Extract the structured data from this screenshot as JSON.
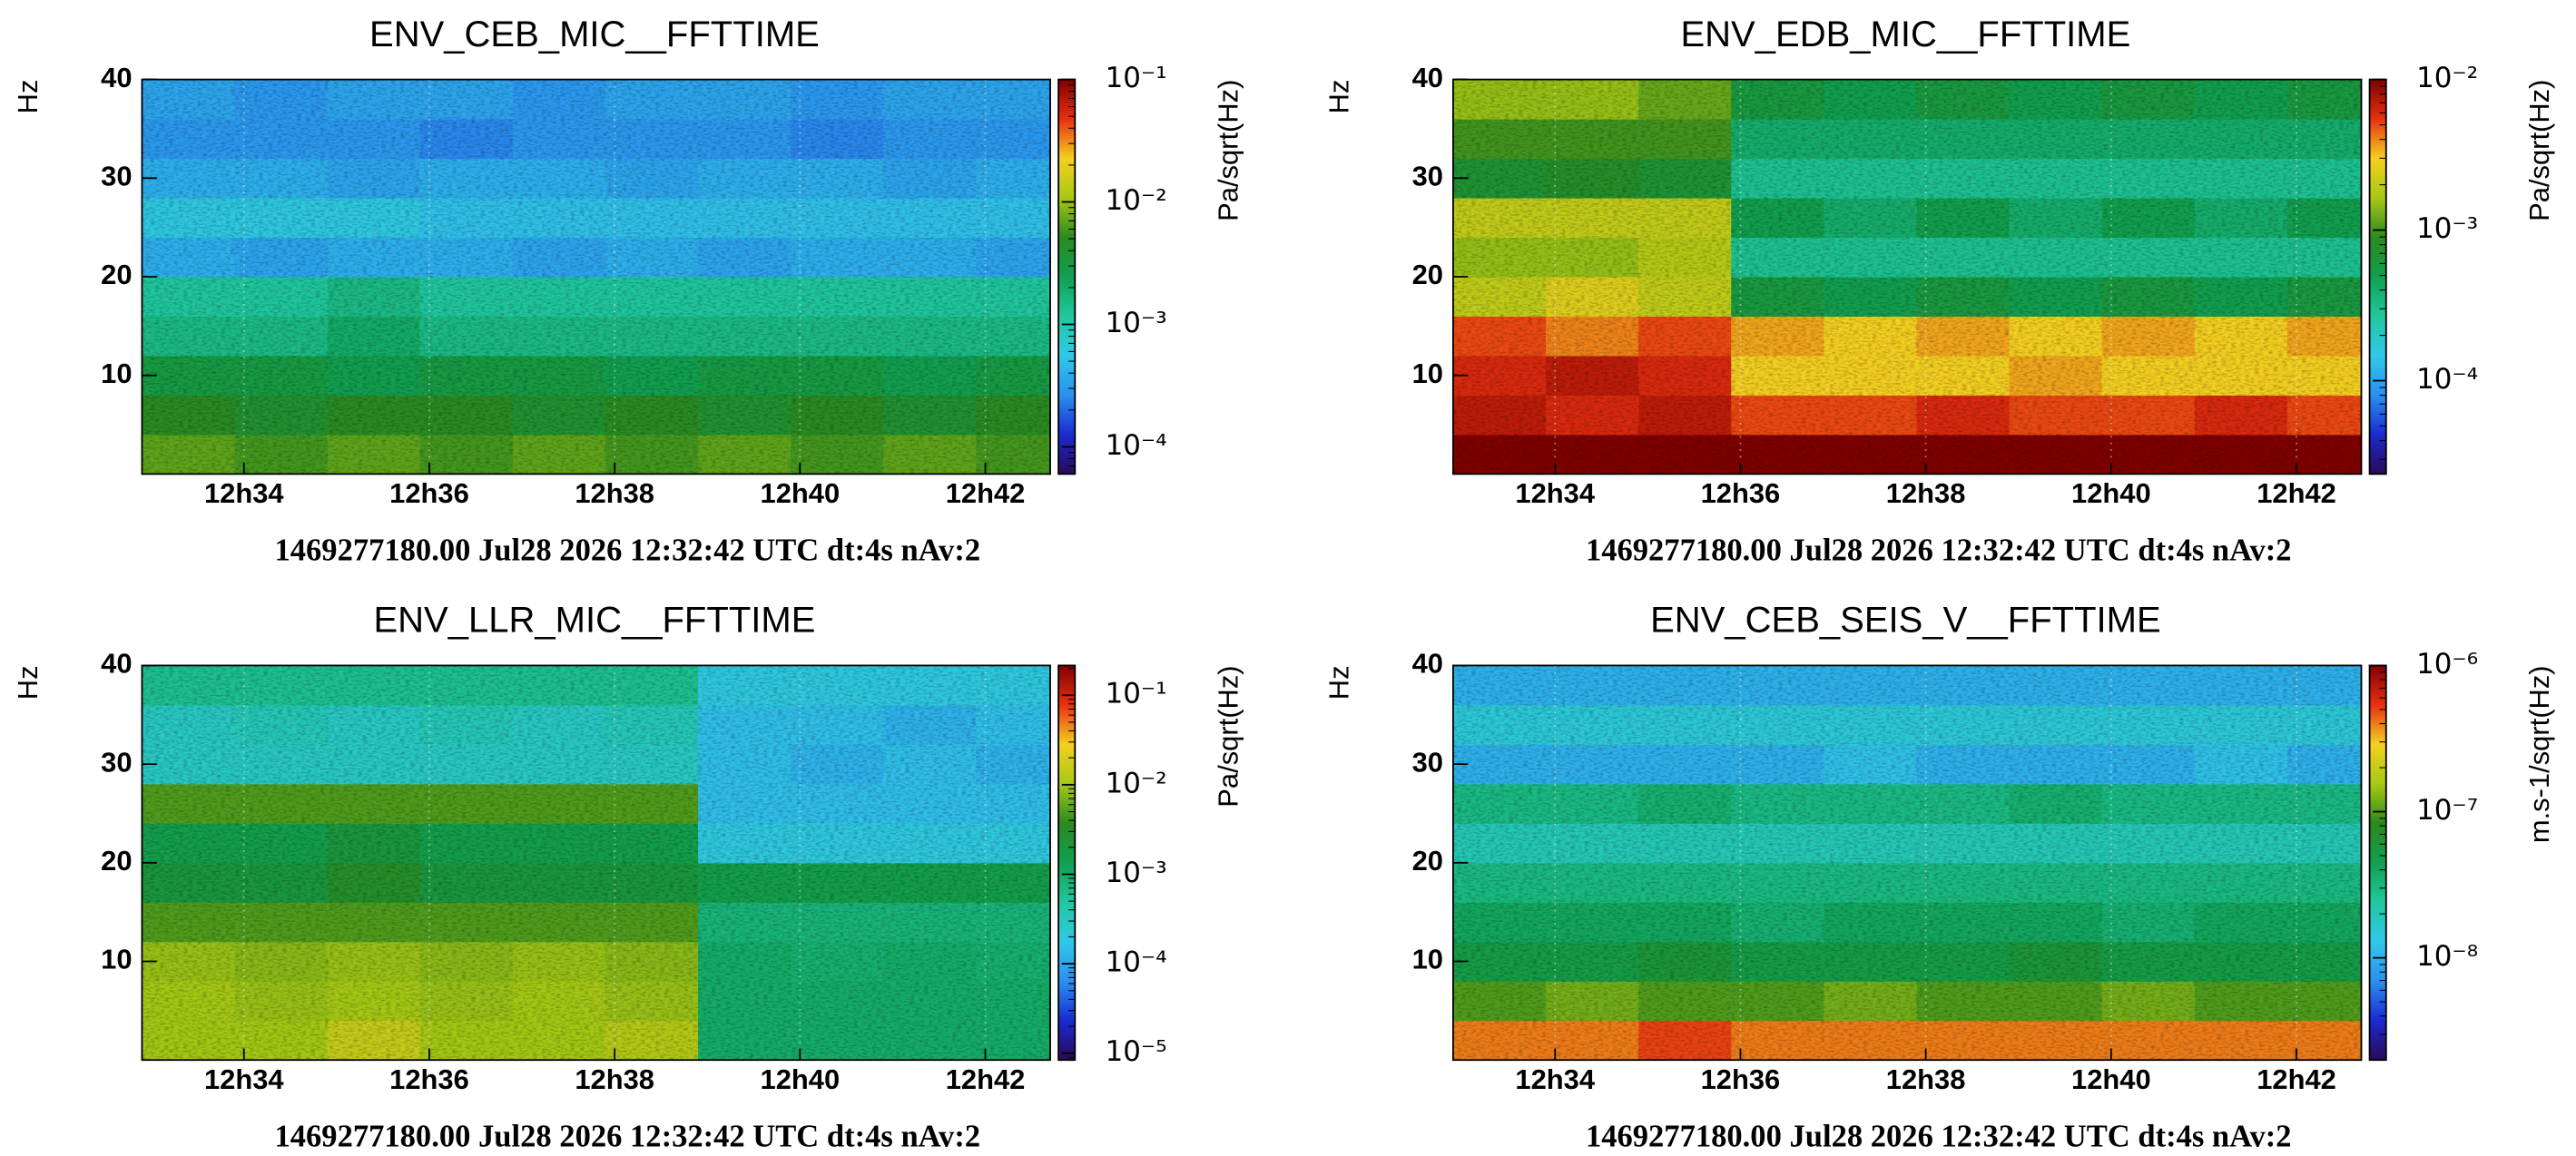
{
  "chart_data": [
    {
      "type": "heatmap",
      "title": "ENV_CEB_MIC__FFTTIME",
      "xlabel": "1469277180.00 Jul28 2026 12:32:42 UTC dt:4s nAv:2",
      "ylabel": "Hz",
      "zlabel": "Pa/sqrt(Hz)",
      "xlim": [
        32.9,
        42.7
      ],
      "ylim": [
        0,
        40
      ],
      "zlim": [
        6e-05,
        0.1
      ],
      "zscale": "log",
      "grid": true,
      "xticks": [
        {
          "value": 34,
          "label": "12h34"
        },
        {
          "value": 36,
          "label": "12h36"
        },
        {
          "value": 38,
          "label": "12h38"
        },
        {
          "value": 40,
          "label": "12h40"
        },
        {
          "value": 42,
          "label": "12h42"
        }
      ],
      "yticks": [
        10,
        20,
        30,
        40
      ],
      "zticks": [
        {
          "value": 0.1,
          "label": "10⁻¹"
        },
        {
          "value": 0.01,
          "label": "10⁻²"
        },
        {
          "value": 0.001,
          "label": "10⁻³"
        },
        {
          "value": 0.0001,
          "label": "10⁻⁴"
        }
      ],
      "colormap": [
        "#2a0a5a",
        "#1a2ad0",
        "#2a90f0",
        "#30c8e8",
        "#20c8a0",
        "#10a050",
        "#2a8a20",
        "#a8c814",
        "#f4d020",
        "#e83010",
        "#800000"
      ],
      "xbins": [
        32.9,
        33.9,
        34.9,
        35.9,
        36.9,
        37.9,
        38.9,
        39.9,
        40.9,
        41.9,
        42.7
      ],
      "ybins": [
        0,
        4,
        8,
        12,
        16,
        20,
        24,
        28,
        32,
        36,
        40
      ],
      "z": [
        [
          0.007,
          0.006,
          0.007,
          0.006,
          0.007,
          0.006,
          0.007,
          0.006,
          0.007,
          0.006
        ],
        [
          0.005,
          0.004,
          0.005,
          0.005,
          0.004,
          0.005,
          0.004,
          0.005,
          0.004,
          0.005
        ],
        [
          0.003,
          0.003,
          0.0025,
          0.003,
          0.003,
          0.0025,
          0.003,
          0.003,
          0.0025,
          0.003
        ],
        [
          0.0015,
          0.0015,
          0.002,
          0.0015,
          0.0015,
          0.0015,
          0.0015,
          0.0015,
          0.0015,
          0.0015
        ],
        [
          0.0012,
          0.0012,
          0.0015,
          0.0012,
          0.0012,
          0.0012,
          0.0012,
          0.0012,
          0.0012,
          0.0012
        ],
        [
          0.0004,
          0.00035,
          0.0004,
          0.0004,
          0.00035,
          0.0004,
          0.00035,
          0.0004,
          0.0004,
          0.00035
        ],
        [
          0.0006,
          0.0006,
          0.0006,
          0.0005,
          0.0005,
          0.0005,
          0.0005,
          0.0005,
          0.0005,
          0.0005
        ],
        [
          0.0004,
          0.0004,
          0.00035,
          0.0004,
          0.0004,
          0.00035,
          0.0004,
          0.0004,
          0.00035,
          0.0004
        ],
        [
          0.0003,
          0.0003,
          0.0003,
          0.00025,
          0.0003,
          0.0003,
          0.0003,
          0.00025,
          0.0003,
          0.0003
        ],
        [
          0.00035,
          0.0003,
          0.00035,
          0.00035,
          0.0003,
          0.00035,
          0.00035,
          0.0003,
          0.00035,
          0.00035
        ]
      ]
    },
    {
      "type": "heatmap",
      "title": "ENV_EDB_MIC__FFTTIME",
      "xlabel": "1469277180.00 Jul28 2026 12:32:42 UTC dt:4s nAv:2",
      "ylabel": "Hz",
      "zlabel": "Pa/sqrt(Hz)",
      "xlim": [
        32.9,
        42.7
      ],
      "ylim": [
        0,
        40
      ],
      "zlim": [
        2.4e-05,
        0.01
      ],
      "zscale": "log",
      "grid": true,
      "xticks": [
        {
          "value": 34,
          "label": "12h34"
        },
        {
          "value": 36,
          "label": "12h36"
        },
        {
          "value": 38,
          "label": "12h38"
        },
        {
          "value": 40,
          "label": "12h40"
        },
        {
          "value": 42,
          "label": "12h42"
        }
      ],
      "yticks": [
        10,
        20,
        30,
        40
      ],
      "zticks": [
        {
          "value": 0.01,
          "label": "10⁻²"
        },
        {
          "value": 0.001,
          "label": "10⁻³"
        },
        {
          "value": 0.0001,
          "label": "10⁻⁴"
        }
      ],
      "colormap": [
        "#2a0a5a",
        "#1a2ad0",
        "#2a90f0",
        "#30c8e8",
        "#20c8a0",
        "#10a050",
        "#2a8a20",
        "#a8c814",
        "#f4d020",
        "#e83010",
        "#800000"
      ],
      "xbins": [
        32.9,
        33.9,
        34.9,
        35.9,
        36.9,
        37.9,
        38.9,
        39.9,
        40.9,
        41.9,
        42.7
      ],
      "ybins": [
        0,
        4,
        8,
        12,
        16,
        20,
        24,
        28,
        32,
        36,
        40
      ],
      "z": [
        [
          0.01,
          0.01,
          0.01,
          0.01,
          0.01,
          0.01,
          0.01,
          0.01,
          0.01,
          0.01
        ],
        [
          0.007,
          0.006,
          0.007,
          0.005,
          0.005,
          0.006,
          0.005,
          0.005,
          0.006,
          0.005
        ],
        [
          0.006,
          0.007,
          0.006,
          0.003,
          0.003,
          0.003,
          0.0035,
          0.003,
          0.003,
          0.003
        ],
        [
          0.005,
          0.004,
          0.005,
          0.0035,
          0.003,
          0.0035,
          0.003,
          0.0035,
          0.003,
          0.0035
        ],
        [
          0.002,
          0.0025,
          0.002,
          0.0006,
          0.0005,
          0.0006,
          0.0005,
          0.0006,
          0.0005,
          0.0006
        ],
        [
          0.0015,
          0.0015,
          0.0018,
          0.0003,
          0.0003,
          0.0003,
          0.0003,
          0.0003,
          0.0003,
          0.0003
        ],
        [
          0.002,
          0.002,
          0.002,
          0.0005,
          0.0004,
          0.0005,
          0.0004,
          0.0005,
          0.0004,
          0.0005
        ],
        [
          0.0007,
          0.0008,
          0.0007,
          0.0003,
          0.0003,
          0.0003,
          0.0003,
          0.0003,
          0.0003,
          0.0003
        ],
        [
          0.001,
          0.001,
          0.001,
          0.0004,
          0.0004,
          0.0004,
          0.0004,
          0.0004,
          0.0004,
          0.0004
        ],
        [
          0.0015,
          0.0015,
          0.0012,
          0.0006,
          0.0005,
          0.0006,
          0.0005,
          0.0006,
          0.0005,
          0.0006
        ]
      ]
    },
    {
      "type": "heatmap",
      "title": "ENV_LLR_MIC__FFTTIME",
      "xlabel": "1469277180.00 Jul28 2026 12:32:42 UTC dt:4s nAv:2",
      "ylabel": "Hz",
      "zlabel": "Pa/sqrt(Hz)",
      "xlim": [
        32.9,
        42.7
      ],
      "ylim": [
        0,
        40
      ],
      "zlim": [
        8.4e-06,
        0.215
      ],
      "zscale": "log",
      "grid": true,
      "xticks": [
        {
          "value": 34,
          "label": "12h34"
        },
        {
          "value": 36,
          "label": "12h36"
        },
        {
          "value": 38,
          "label": "12h38"
        },
        {
          "value": 40,
          "label": "12h40"
        },
        {
          "value": 42,
          "label": "12h42"
        }
      ],
      "yticks": [
        10,
        20,
        30,
        40
      ],
      "zticks": [
        {
          "value": 0.1,
          "label": "10⁻¹"
        },
        {
          "value": 0.01,
          "label": "10⁻²"
        },
        {
          "value": 0.001,
          "label": "10⁻³"
        },
        {
          "value": 0.0001,
          "label": "10⁻⁴"
        },
        {
          "value": 1e-05,
          "label": "10⁻⁵"
        }
      ],
      "colormap": [
        "#2a0a5a",
        "#1a2ad0",
        "#2a90f0",
        "#30c8e8",
        "#20c8a0",
        "#10a050",
        "#2a8a20",
        "#a8c814",
        "#f4d020",
        "#e83010",
        "#800000"
      ],
      "xbins": [
        32.9,
        33.9,
        34.9,
        35.9,
        36.9,
        37.9,
        38.9,
        39.9,
        40.9,
        41.9,
        42.7
      ],
      "ybins": [
        0,
        4,
        8,
        12,
        16,
        20,
        24,
        28,
        32,
        36,
        40
      ],
      "z": [
        [
          0.01,
          0.01,
          0.015,
          0.01,
          0.01,
          0.012,
          0.001,
          0.001,
          0.001,
          0.001
        ],
        [
          0.01,
          0.009,
          0.01,
          0.009,
          0.01,
          0.009,
          0.001,
          0.001,
          0.001,
          0.001
        ],
        [
          0.009,
          0.008,
          0.009,
          0.008,
          0.009,
          0.008,
          0.001,
          0.0009,
          0.001,
          0.0009
        ],
        [
          0.005,
          0.005,
          0.005,
          0.005,
          0.005,
          0.005,
          0.0008,
          0.0008,
          0.0008,
          0.0008
        ],
        [
          0.002,
          0.002,
          0.003,
          0.002,
          0.002,
          0.002,
          0.0015,
          0.0015,
          0.0015,
          0.0015
        ],
        [
          0.0015,
          0.0015,
          0.002,
          0.0015,
          0.0015,
          0.0015,
          0.0002,
          0.0002,
          0.0002,
          0.0002
        ],
        [
          0.005,
          0.005,
          0.005,
          0.005,
          0.005,
          0.005,
          0.00015,
          0.00015,
          0.00015,
          0.00015
        ],
        [
          0.0003,
          0.0003,
          0.0003,
          0.0003,
          0.0003,
          0.0003,
          0.00015,
          0.00012,
          0.00015,
          0.00012
        ],
        [
          0.0003,
          0.00035,
          0.0003,
          0.00035,
          0.0003,
          0.00035,
          0.00015,
          0.00015,
          0.00012,
          0.00015
        ],
        [
          0.0006,
          0.0006,
          0.0006,
          0.0006,
          0.0006,
          0.0006,
          0.0002,
          0.0002,
          0.0002,
          0.0002
        ]
      ]
    },
    {
      "type": "heatmap",
      "title": "ENV_CEB_SEIS_V__FFTTIME",
      "xlabel": "1469277180.00 Jul28 2026 12:32:42 UTC dt:4s nAv:2",
      "ylabel": "Hz",
      "zlabel": "m.s-1/sqrt(Hz)",
      "xlim": [
        32.9,
        42.7
      ],
      "ylim": [
        0,
        40
      ],
      "zlim": [
        2e-09,
        1e-06
      ],
      "zscale": "log",
      "grid": true,
      "xticks": [
        {
          "value": 34,
          "label": "12h34"
        },
        {
          "value": 36,
          "label": "12h36"
        },
        {
          "value": 38,
          "label": "12h38"
        },
        {
          "value": 40,
          "label": "12h40"
        },
        {
          "value": 42,
          "label": "12h42"
        }
      ],
      "yticks": [
        10,
        20,
        30,
        40
      ],
      "zticks": [
        {
          "value": 1e-06,
          "label": "10⁻⁶"
        },
        {
          "value": 1e-07,
          "label": "10⁻⁷"
        },
        {
          "value": 1e-08,
          "label": "10⁻⁸"
        }
      ],
      "colormap": [
        "#2a0a5a",
        "#1a2ad0",
        "#2a90f0",
        "#30c8e8",
        "#20c8a0",
        "#10a050",
        "#2a8a20",
        "#a8c814",
        "#f4d020",
        "#e83010",
        "#800000"
      ],
      "xbins": [
        32.9,
        33.9,
        34.9,
        35.9,
        36.9,
        37.9,
        38.9,
        39.9,
        40.9,
        41.9,
        42.7
      ],
      "ybins": [
        0,
        4,
        8,
        12,
        16,
        20,
        24,
        28,
        32,
        36,
        40
      ],
      "z": [
        [
          4e-07,
          4e-07,
          5e-07,
          4e-07,
          4e-07,
          4e-07,
          4e-07,
          4e-07,
          4e-07,
          4e-07
        ],
        [
          1e-07,
          1.2e-07,
          1e-07,
          1e-07,
          1.2e-07,
          1e-07,
          1e-07,
          1.2e-07,
          1e-07,
          1e-07
        ],
        [
          5e-08,
          5e-08,
          6e-08,
          5e-08,
          5e-08,
          5e-08,
          6e-08,
          5e-08,
          5e-08,
          5e-08
        ],
        [
          4e-08,
          4e-08,
          4e-08,
          3.5e-08,
          4e-08,
          4e-08,
          4e-08,
          3.5e-08,
          4e-08,
          4e-08
        ],
        [
          3e-08,
          3e-08,
          3e-08,
          3e-08,
          3e-08,
          3e-08,
          3e-08,
          3e-08,
          3e-08,
          3e-08
        ],
        [
          2e-08,
          2e-08,
          2e-08,
          2e-08,
          2e-08,
          2e-08,
          2e-08,
          2e-08,
          2e-08,
          2e-08
        ],
        [
          3e-08,
          3e-08,
          3.5e-08,
          3e-08,
          3e-08,
          3e-08,
          3.5e-08,
          3e-08,
          3e-08,
          3e-08
        ],
        [
          1e-08,
          1e-08,
          1e-08,
          1e-08,
          1.2e-08,
          1e-08,
          1e-08,
          1e-08,
          1.2e-08,
          1e-08
        ],
        [
          1.5e-08,
          1.5e-08,
          1.5e-08,
          1.5e-08,
          1.5e-08,
          1.5e-08,
          1.5e-08,
          1.5e-08,
          1.5e-08,
          1.5e-08
        ],
        [
          1e-08,
          1e-08,
          1e-08,
          1e-08,
          1e-08,
          1e-08,
          1e-08,
          1e-08,
          1e-08,
          1e-08
        ]
      ]
    }
  ]
}
